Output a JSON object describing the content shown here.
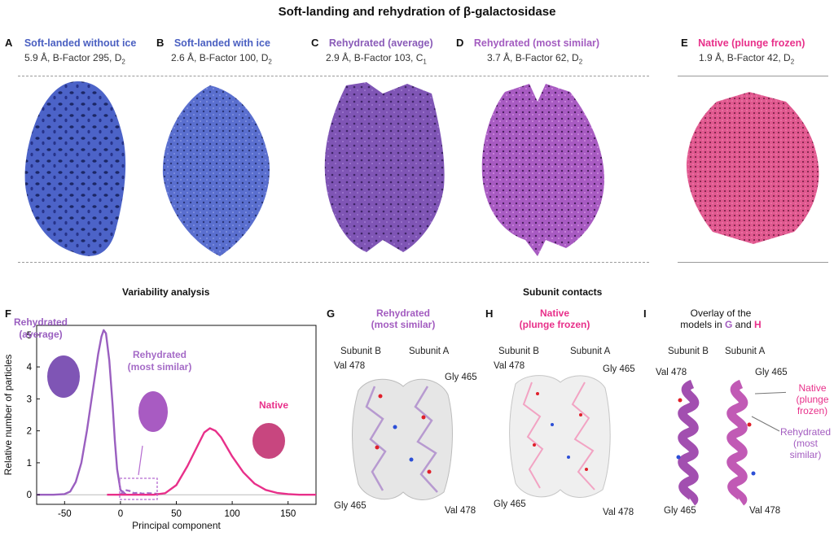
{
  "figure_title": "Soft-landing and rehydration of β-galactosidase",
  "panels": {
    "A": {
      "label": "A",
      "title": "Soft-landed without ice",
      "info": "5.9 Å, B-Factor 295, D",
      "sub": "2",
      "color": "#4c63c8"
    },
    "B": {
      "label": "B",
      "title": "Soft-landed with ice",
      "info": "2.6 Å, B-Factor 100, D",
      "sub": "2",
      "color": "#5a6fcf"
    },
    "C": {
      "label": "C",
      "title": "Rehydrated (average)",
      "info": "2.9 Å, B-Factor 103, C",
      "sub": "1",
      "color": "#7f55b5"
    },
    "D": {
      "label": "D",
      "title": "Rehydrated (most similar)",
      "info": "3.7 Å, B-Factor 62, D",
      "sub": "2",
      "color": "#a85bc2"
    },
    "E": {
      "label": "E",
      "title": "Native (plunge frozen)",
      "info": "1.9 Å, B-Factor 42, D",
      "sub": "2",
      "color": "#e0588f"
    }
  },
  "sections": {
    "variability": "Variability analysis",
    "contacts": "Subunit contacts"
  },
  "panel_F": {
    "label": "F",
    "annot_avg_1": "Rehydrated",
    "annot_avg_2": "(average)",
    "annot_ms_1": "Rehydrated",
    "annot_ms_2": "(most similar)",
    "annot_native": "Native"
  },
  "chart_data": {
    "type": "line",
    "xlabel": "Principal component",
    "ylabel": "Relative number of particles",
    "xlim": [
      -75,
      175
    ],
    "ylim": [
      -0.3,
      5.3
    ],
    "xticks": [
      -50,
      0,
      50,
      100,
      150
    ],
    "yticks": [
      0,
      1,
      2,
      3,
      4,
      5
    ],
    "series": [
      {
        "name": "Rehydrated (average)",
        "color": "#9a5fc0",
        "x": [
          -75,
          -60,
          -50,
          -45,
          -40,
          -35,
          -30,
          -25,
          -20,
          -17,
          -15,
          -13,
          -10,
          -7,
          -5,
          -3,
          0,
          5
        ],
        "y": [
          0,
          0,
          0.02,
          0.1,
          0.4,
          1.0,
          2.0,
          3.2,
          4.4,
          4.95,
          5.15,
          5.05,
          4.2,
          2.8,
          1.7,
          0.8,
          0.15,
          0
        ]
      },
      {
        "name": "Rehydrated (most similar)",
        "color": "#a56bc7",
        "dashed": true,
        "x": [
          0,
          4,
          8,
          12,
          16,
          20,
          24,
          28,
          32,
          34
        ],
        "y": [
          0,
          0.15,
          0.12,
          0.05,
          0.06,
          0.03,
          0.05,
          0.04,
          0.03,
          0.02
        ]
      },
      {
        "name": "Native",
        "color": "#e8308a",
        "x": [
          -12,
          0,
          30,
          40,
          50,
          60,
          70,
          75,
          80,
          85,
          90,
          100,
          110,
          120,
          130,
          140,
          150,
          160,
          175
        ],
        "y": [
          0,
          0,
          0,
          0.05,
          0.3,
          0.9,
          1.6,
          1.95,
          2.08,
          2.0,
          1.8,
          1.2,
          0.7,
          0.35,
          0.15,
          0.06,
          0.02,
          0,
          0
        ]
      }
    ]
  },
  "panel_G": {
    "label": "G",
    "title_1": "Rehydrated",
    "title_2": "(most similar)",
    "subB": "Subunit B",
    "subA": "Subunit A",
    "val": "Val 478",
    "gly": "Gly 465",
    "gly_b": "Gly 465",
    "val_b": "Val 478"
  },
  "panel_H": {
    "label": "H",
    "title_1": "Native",
    "title_2": "(plunge frozen)",
    "subB": "Subunit B",
    "subA": "Subunit A",
    "val": "Val 478",
    "gly": "Gly 465",
    "gly_b": "Gly 465",
    "val_b": "Val 478"
  },
  "panel_I": {
    "label": "I",
    "title_1": "Overlay of the",
    "title_2a": "models in ",
    "title_G": "G",
    "title_and": " and ",
    "title_H": "H",
    "subB": "Subunit B",
    "subA": "Subunit A",
    "val": "Val 478",
    "gly": "Gly 465",
    "gly_b": "Gly 465",
    "val_b": "Val 478",
    "leg_native_1": "Native",
    "leg_native_2": "(plunge",
    "leg_native_3": "frozen)",
    "leg_rehyd_1": "Rehydrated",
    "leg_rehyd_2": "(most",
    "leg_rehyd_3": "similar)"
  }
}
